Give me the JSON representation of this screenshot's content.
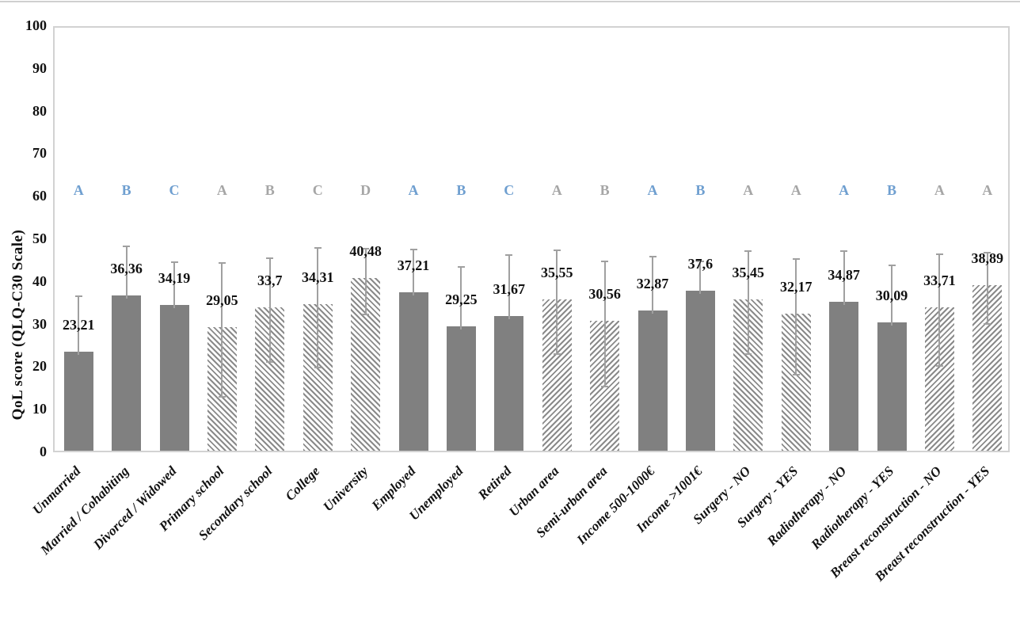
{
  "chart_data": {
    "type": "bar",
    "title": "",
    "xlabel": "",
    "ylabel": "QoL score (QLQ-C30  Scale)",
    "ylim": [
      0,
      100
    ],
    "y_ticks": [
      0,
      10,
      20,
      30,
      40,
      50,
      60,
      70,
      80,
      90,
      100
    ],
    "grid": false,
    "legend_position": "none",
    "decimal_separator": ",",
    "colors": {
      "solid_bar_fill": "#808080",
      "hatch_stripe": "#8a8a8a",
      "error_bar": "#a0a0a0",
      "letter_blue": "#6f9fd0",
      "letter_gray": "#a6a6a6",
      "axis_line": "#d2d2d2",
      "text": "#111111"
    },
    "bars": [
      {
        "label": "Unmarried",
        "value": 23.21,
        "display": "23,21",
        "error_up": 13.8,
        "letter": "A",
        "letter_color": "blue",
        "fill": "solid",
        "hatch_dir": null
      },
      {
        "label": "Married / Cohabiting",
        "value": 36.36,
        "display": "36,36",
        "error_up": 12.4,
        "letter": "B",
        "letter_color": "blue",
        "fill": "solid",
        "hatch_dir": null
      },
      {
        "label": "Divorced / Widowed",
        "value": 34.19,
        "display": "34,19",
        "error_up": 10.7,
        "letter": "C",
        "letter_color": "blue",
        "fill": "solid",
        "hatch_dir": null
      },
      {
        "label": "Primary school",
        "value": 29.05,
        "display": "29,05",
        "error_up": 15.7,
        "letter": "A",
        "letter_color": "gray",
        "fill": "hatch",
        "hatch_dir": "down"
      },
      {
        "label": "Secondary school",
        "value": 33.7,
        "display": "33,7",
        "error_up": 12.2,
        "letter": "B",
        "letter_color": "gray",
        "fill": "hatch",
        "hatch_dir": "down"
      },
      {
        "label": "College",
        "value": 34.31,
        "display": "34,31",
        "error_up": 14.0,
        "letter": "C",
        "letter_color": "gray",
        "fill": "hatch",
        "hatch_dir": "down"
      },
      {
        "label": "University",
        "value": 40.48,
        "display": "40,48",
        "error_up": 7.7,
        "letter": "D",
        "letter_color": "gray",
        "fill": "hatch",
        "hatch_dir": "down"
      },
      {
        "label": "Employed",
        "value": 37.21,
        "display": "37,21",
        "error_up": 10.7,
        "letter": "A",
        "letter_color": "blue",
        "fill": "solid",
        "hatch_dir": null
      },
      {
        "label": "Unemployed",
        "value": 29.25,
        "display": "29,25",
        "error_up": 14.6,
        "letter": "B",
        "letter_color": "blue",
        "fill": "solid",
        "hatch_dir": null
      },
      {
        "label": "Retired",
        "value": 31.67,
        "display": "31,67",
        "error_up": 15.0,
        "letter": "C",
        "letter_color": "blue",
        "fill": "solid",
        "hatch_dir": null
      },
      {
        "label": "Urban area",
        "value": 35.55,
        "display": "35,55",
        "error_up": 12.2,
        "letter": "A",
        "letter_color": "gray",
        "fill": "hatch",
        "hatch_dir": "up"
      },
      {
        "label": "Semi-urban area",
        "value": 30.56,
        "display": "30,56",
        "error_up": 14.7,
        "letter": "B",
        "letter_color": "gray",
        "fill": "hatch",
        "hatch_dir": "up"
      },
      {
        "label": "Income 500-1000€",
        "value": 32.87,
        "display": "32,87",
        "error_up": 13.5,
        "letter": "A",
        "letter_color": "blue",
        "fill": "solid",
        "hatch_dir": null
      },
      {
        "label": "Income >1001€",
        "value": 37.6,
        "display": "37,6",
        "error_up": 7.5,
        "letter": "B",
        "letter_color": "blue",
        "fill": "solid",
        "hatch_dir": null
      },
      {
        "label": "Surgery - NO",
        "value": 35.45,
        "display": "35,45",
        "error_up": 12.1,
        "letter": "A",
        "letter_color": "gray",
        "fill": "hatch",
        "hatch_dir": "down"
      },
      {
        "label": "Surgery - YES",
        "value": 32.17,
        "display": "32,17",
        "error_up": 13.5,
        "letter": "A",
        "letter_color": "gray",
        "fill": "hatch",
        "hatch_dir": "down"
      },
      {
        "label": "Radiotherapy - NO",
        "value": 34.87,
        "display": "34,87",
        "error_up": 12.7,
        "letter": "A",
        "letter_color": "blue",
        "fill": "solid",
        "hatch_dir": null
      },
      {
        "label": "Radiotherapy - YES",
        "value": 30.09,
        "display": "30,09",
        "error_up": 14.1,
        "letter": "B",
        "letter_color": "blue",
        "fill": "solid",
        "hatch_dir": null
      },
      {
        "label": "Breast reconstruction - NO",
        "value": 33.71,
        "display": "33,71",
        "error_up": 13.1,
        "letter": "A",
        "letter_color": "gray",
        "fill": "hatch",
        "hatch_dir": "up"
      },
      {
        "label": "Breast reconstruction - YES",
        "value": 38.89,
        "display": "38,89",
        "error_up": 8.4,
        "letter": "A",
        "letter_color": "gray",
        "fill": "hatch",
        "hatch_dir": "up"
      }
    ]
  }
}
